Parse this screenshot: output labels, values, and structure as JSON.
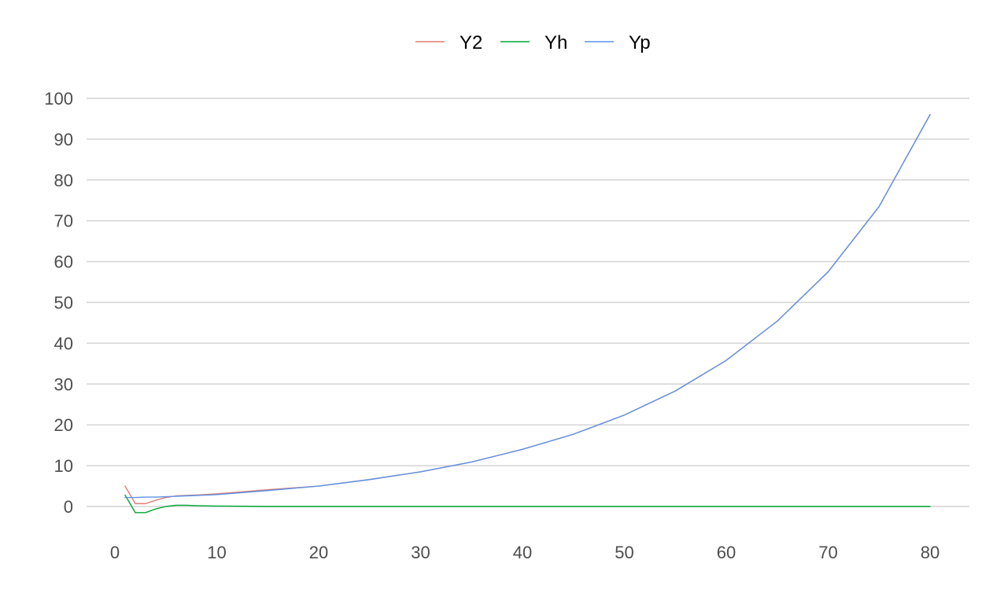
{
  "chart_data": {
    "type": "line",
    "title": "",
    "xlabel": "",
    "ylabel": "",
    "xlim": [
      0,
      80
    ],
    "ylim": [
      0,
      100
    ],
    "x_ticks": [
      0,
      10,
      20,
      30,
      40,
      50,
      60,
      70,
      80
    ],
    "y_ticks": [
      0,
      10,
      20,
      30,
      40,
      50,
      60,
      70,
      80,
      90,
      100
    ],
    "grid": "horizontal major",
    "legend_position": "top",
    "x": [
      1,
      2,
      3,
      4,
      5,
      6,
      7,
      8,
      10,
      15,
      20,
      25,
      30,
      35,
      40,
      45,
      50,
      55,
      60,
      65,
      70,
      75,
      80
    ],
    "series": [
      {
        "name": "Y2",
        "color": "#e07b73",
        "values": [
          5.0,
          0.7,
          0.7,
          1.5,
          2.2,
          2.6,
          2.7,
          2.8,
          3.1,
          4.1,
          5.0,
          6.6,
          8.5,
          10.9,
          14.0,
          17.7,
          22.4,
          28.3,
          35.8,
          45.4,
          57.5,
          73.5,
          96.0
        ]
      },
      {
        "name": "Yh",
        "color": "#00a533",
        "values": [
          2.8,
          -1.5,
          -1.5,
          -0.6,
          0.0,
          0.3,
          0.3,
          0.2,
          0.1,
          0.0,
          0.0,
          0.0,
          0.0,
          0.0,
          0.0,
          0.0,
          0.0,
          0.0,
          0.0,
          0.0,
          0.0,
          0.0,
          0.0
        ]
      },
      {
        "name": "Yp",
        "color": "#5b92e5",
        "values": [
          2.2,
          2.2,
          2.3,
          2.3,
          2.4,
          2.5,
          2.6,
          2.7,
          2.9,
          3.9,
          5.0,
          6.6,
          8.5,
          10.9,
          14.0,
          17.7,
          22.4,
          28.3,
          35.8,
          45.4,
          57.5,
          73.5,
          96.0
        ]
      }
    ]
  }
}
